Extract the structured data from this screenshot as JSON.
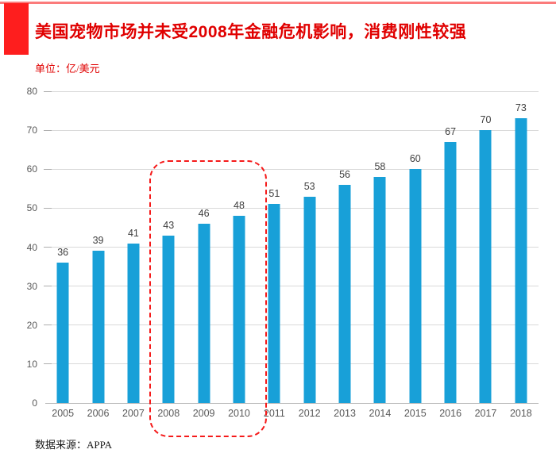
{
  "header": {
    "title": "美国宠物市场并未受2008年金融危机影响，消费刚性较强",
    "unit_label": "单位：亿/美元"
  },
  "footer": {
    "source": "数据来源：APPA"
  },
  "colors": {
    "bar": "#18a0d8",
    "title_red": "#e00000",
    "top_rule_red": "#fb7b7b",
    "accent_block_red": "#fe1e1e",
    "highlight_dash_red": "#f51a1a",
    "gridline": "#d9d9d9",
    "axis_line": "#bfbfbf",
    "tick_label": "#595959",
    "data_label": "#404040"
  },
  "chart_data": {
    "type": "bar",
    "title": "美国宠物市场并未受2008年金融危机影响，消费刚性较强",
    "unit": "亿/美元",
    "categories": [
      "2005",
      "2006",
      "2007",
      "2008",
      "2009",
      "2010",
      "2011",
      "2012",
      "2013",
      "2014",
      "2015",
      "2016",
      "2017",
      "2018"
    ],
    "values": [
      36,
      39,
      41,
      43,
      46,
      48,
      51,
      53,
      56,
      58,
      60,
      67,
      70,
      73
    ],
    "xlabel": "",
    "ylabel": "",
    "ylim": [
      0,
      80
    ],
    "y_ticks": [
      0,
      10,
      20,
      30,
      40,
      50,
      60,
      70,
      80
    ],
    "grid": true,
    "legend": false,
    "data_labels_shown": true,
    "annotation": {
      "type": "dashed-rounded-box",
      "highlight_categories": [
        "2008",
        "2009",
        "2010"
      ]
    },
    "source": "APPA"
  }
}
